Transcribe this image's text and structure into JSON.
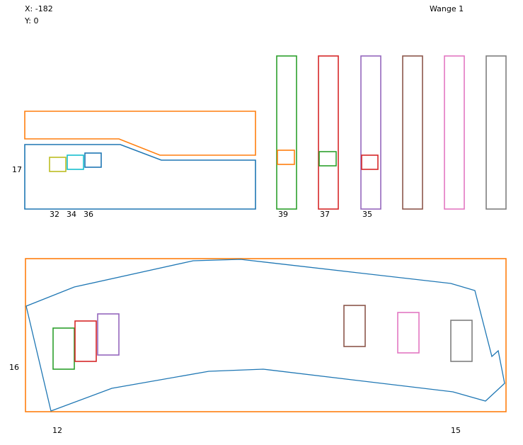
{
  "header": {
    "x_label": "X:",
    "x_value": "-182",
    "y_label": "Y:",
    "y_value": "0",
    "title": "Wange 1"
  },
  "colors": {
    "blue": "#1f77b4",
    "orange": "#ff7f0e",
    "green": "#2ca02c",
    "red": "#d62728",
    "purple": "#9467bd",
    "brown": "#8c564b",
    "pink": "#e377c2",
    "gray": "#7f7f7f",
    "olive": "#bcbd22",
    "cyan": "#17becf"
  },
  "top_panel": {
    "side_label": "17",
    "small_boxes": [
      {
        "label": "32",
        "color": "olive"
      },
      {
        "label": "34",
        "color": "cyan"
      },
      {
        "label": "36",
        "color": "blue"
      }
    ]
  },
  "bars": [
    {
      "label": "39",
      "color": "green",
      "inner_color": "orange"
    },
    {
      "label": "37",
      "color": "red",
      "inner_color": "green"
    },
    {
      "label": "35",
      "color": "purple",
      "inner_color": "red"
    },
    {
      "label": "",
      "color": "brown",
      "inner_color": ""
    },
    {
      "label": "",
      "color": "pink",
      "inner_color": ""
    },
    {
      "label": "",
      "color": "gray",
      "inner_color": ""
    }
  ],
  "bottom_panel": {
    "side_label": "16",
    "left_label": "12",
    "right_label": "15",
    "boxes": [
      {
        "color": "green"
      },
      {
        "color": "red"
      },
      {
        "color": "purple"
      },
      {
        "color": "brown"
      },
      {
        "color": "pink"
      },
      {
        "color": "gray"
      }
    ]
  }
}
